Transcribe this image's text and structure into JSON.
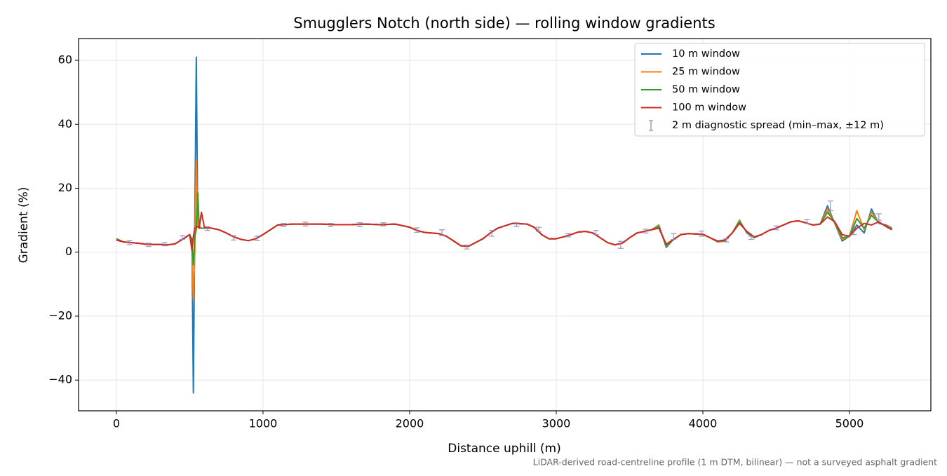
{
  "chart_data": {
    "type": "line",
    "title": "Smugglers Notch (north side) — rolling window gradients",
    "x_label": "Distance uphill (m)",
    "y_label": "Gradient (%)",
    "footnote": "LiDAR-derived road-centreline profile (1 m DTM, bilinear) — not a surveyed asphalt gradient",
    "xlim": [
      -258,
      5555
    ],
    "ylim": [
      -49.6,
      66.8
    ],
    "xticks": [
      0,
      1000,
      2000,
      3000,
      4000,
      5000
    ],
    "yticks": [
      {
        "value": -40,
        "label": "−40"
      },
      {
        "value": -20,
        "label": "−20"
      },
      0,
      20,
      40,
      60
    ],
    "grid": true,
    "legend": "upper right",
    "x": [
      0,
      50,
      100,
      150,
      200,
      250,
      300,
      350,
      400,
      450,
      500,
      515,
      525,
      535,
      545,
      555,
      565,
      580,
      600,
      650,
      700,
      750,
      800,
      850,
      900,
      950,
      1000,
      1050,
      1100,
      1200,
      1300,
      1400,
      1500,
      1600,
      1700,
      1800,
      1900,
      2000,
      2050,
      2100,
      2200,
      2250,
      2300,
      2350,
      2400,
      2450,
      2500,
      2550,
      2600,
      2700,
      2800,
      2850,
      2900,
      2950,
      3000,
      3050,
      3100,
      3150,
      3200,
      3250,
      3300,
      3350,
      3400,
      3450,
      3500,
      3550,
      3600,
      3650,
      3700,
      3750,
      3800,
      3850,
      3900,
      3950,
      4000,
      4050,
      4100,
      4150,
      4200,
      4250,
      4300,
      4350,
      4400,
      4450,
      4500,
      4550,
      4600,
      4650,
      4700,
      4750,
      4800,
      4850,
      4900,
      4950,
      5000,
      5050,
      5100,
      5150,
      5200,
      5250,
      5290
    ],
    "series": [
      {
        "name": "10 m window",
        "color": "#1f77b4",
        "values": [
          3.8,
          3.2,
          3.0,
          2.8,
          2.5,
          2.4,
          2.4,
          2.3,
          2.6,
          4.0,
          5.5,
          4,
          -44,
          10,
          61,
          8,
          7.5,
          7.5,
          7.5,
          7.5,
          7.0,
          6.0,
          4.8,
          4.0,
          3.6,
          4.2,
          5.5,
          7.0,
          8.5,
          8.8,
          8.8,
          8.8,
          8.6,
          8.6,
          8.8,
          8.6,
          8.8,
          7.8,
          6.8,
          6.2,
          5.8,
          5.0,
          3.5,
          2.0,
          1.8,
          3.0,
          4.2,
          6.0,
          7.5,
          9.0,
          8.8,
          7.8,
          5.5,
          4.2,
          4.2,
          4.8,
          5.5,
          6.3,
          6.5,
          6.0,
          4.5,
          3.0,
          2.3,
          2.8,
          4.5,
          6.0,
          6.5,
          7.0,
          8.5,
          1.5,
          4.0,
          5.5,
          5.8,
          5.7,
          5.6,
          4.5,
          3.2,
          3.5,
          6.0,
          10.0,
          6.0,
          4.5,
          5.5,
          6.8,
          7.5,
          8.5,
          9.5,
          9.8,
          9.2,
          8.5,
          8.8,
          14.5,
          9.0,
          3.5,
          5.0,
          8.5,
          6.0,
          13.5,
          9.0,
          8.5,
          7.5
        ]
      },
      {
        "name": "25 m window",
        "color": "#ff7f0e",
        "values": [
          3.8,
          3.2,
          3.0,
          2.8,
          2.5,
          2.4,
          2.4,
          2.3,
          2.6,
          4.0,
          5.5,
          2,
          -15,
          0,
          29,
          8,
          7.5,
          7.5,
          7.5,
          7.5,
          7.0,
          6.0,
          4.8,
          4.0,
          3.6,
          4.2,
          5.5,
          7.0,
          8.5,
          8.8,
          8.8,
          8.8,
          8.6,
          8.6,
          8.8,
          8.6,
          8.8,
          7.8,
          6.8,
          6.2,
          5.8,
          5.0,
          3.5,
          2.0,
          1.8,
          3.0,
          4.2,
          6.0,
          7.5,
          9.0,
          8.8,
          7.8,
          5.5,
          4.2,
          4.2,
          4.8,
          5.5,
          6.3,
          6.5,
          6.0,
          4.5,
          3.0,
          2.3,
          2.8,
          4.5,
          6.0,
          6.5,
          7.0,
          8.3,
          1.8,
          4.0,
          5.5,
          5.8,
          5.7,
          5.6,
          4.5,
          3.3,
          3.6,
          6.0,
          9.8,
          6.2,
          4.6,
          5.5,
          6.8,
          7.5,
          8.5,
          9.5,
          9.8,
          9.2,
          8.5,
          8.8,
          13.5,
          9.2,
          4.0,
          5.0,
          13.0,
          7.0,
          12.5,
          9.2,
          8.3,
          7.4
        ]
      },
      {
        "name": "50 m window",
        "color": "#2ca02c",
        "values": [
          4.2,
          3.2,
          3.0,
          2.8,
          2.5,
          2.4,
          2.4,
          2.3,
          2.6,
          4.0,
          5.5,
          3,
          -4,
          5,
          7,
          18.5,
          8,
          7.5,
          7.5,
          7.5,
          7.0,
          6.0,
          4.8,
          4.0,
          3.6,
          4.2,
          5.5,
          7.0,
          8.5,
          8.8,
          8.8,
          8.8,
          8.6,
          8.6,
          8.8,
          8.6,
          8.8,
          7.8,
          6.8,
          6.2,
          5.8,
          5.0,
          3.5,
          2.0,
          1.8,
          3.0,
          4.2,
          6.0,
          7.5,
          9.0,
          8.8,
          7.8,
          5.5,
          4.2,
          4.2,
          4.8,
          5.5,
          6.3,
          6.5,
          6.0,
          4.5,
          3.0,
          2.3,
          2.8,
          4.5,
          6.0,
          6.5,
          7.0,
          8.0,
          2.0,
          4.0,
          5.5,
          5.8,
          5.7,
          5.6,
          4.5,
          3.4,
          3.7,
          6.0,
          9.5,
          6.3,
          4.7,
          5.5,
          6.8,
          7.5,
          8.5,
          9.5,
          9.8,
          9.2,
          8.5,
          8.8,
          12.5,
          9.4,
          4.5,
          5.0,
          10.5,
          7.5,
          11.5,
          9.3,
          8.2,
          7.2
        ]
      },
      {
        "name": "100 m window",
        "color": "#d62728",
        "values": [
          3.8,
          3.2,
          3.0,
          2.8,
          2.5,
          2.4,
          2.4,
          2.3,
          2.6,
          4.0,
          5.5,
          0.6,
          5,
          7.5,
          7.8,
          8,
          7.5,
          12.5,
          7.8,
          7.5,
          7.0,
          6.0,
          4.8,
          4.0,
          3.6,
          4.2,
          5.5,
          7.0,
          8.5,
          8.8,
          8.8,
          8.8,
          8.6,
          8.6,
          8.8,
          8.6,
          8.8,
          7.8,
          6.8,
          6.2,
          5.8,
          5.0,
          3.5,
          2.0,
          1.8,
          3.0,
          4.2,
          6.0,
          7.5,
          9.0,
          8.8,
          7.8,
          5.5,
          4.2,
          4.2,
          4.8,
          5.5,
          6.3,
          6.5,
          6.0,
          4.5,
          3.0,
          2.3,
          2.8,
          4.5,
          6.0,
          6.5,
          7.0,
          7.5,
          2.5,
          4.0,
          5.5,
          5.8,
          5.7,
          5.6,
          4.5,
          3.5,
          3.8,
          6.0,
          9.0,
          6.5,
          4.8,
          5.5,
          6.8,
          7.5,
          8.5,
          9.5,
          9.8,
          9.2,
          8.5,
          8.8,
          11.0,
          9.5,
          5.5,
          5.0,
          7.5,
          9.0,
          8.5,
          9.5,
          8.0,
          7.0
        ]
      }
    ],
    "spread": {
      "name": "2 m diagnostic spread (min–max, ±12 m)",
      "color": "#8c8cb4",
      "x": [
        90,
        220,
        330,
        450,
        620,
        800,
        960,
        1140,
        1290,
        1460,
        1660,
        1820,
        2050,
        2220,
        2390,
        2560,
        2730,
        2880,
        3080,
        3270,
        3440,
        3610,
        3800,
        3990,
        4160,
        4330,
        4500,
        4710,
        4870,
        5030,
        5200
      ],
      "low": [
        2.4,
        1.8,
        2.0,
        4.0,
        6.8,
        3.8,
        3.6,
        8.0,
        8.2,
        8.0,
        8.0,
        8.2,
        6.2,
        5.2,
        1.0,
        5.0,
        8.0,
        6.5,
        4.8,
        5.5,
        1.2,
        6.0,
        4.0,
        5.0,
        3.2,
        4.0,
        7.0,
        9.0,
        13.0,
        5.5,
        10.0
      ],
      "high": [
        3.6,
        2.8,
        3.0,
        5.2,
        8.0,
        5.2,
        5.0,
        9.0,
        9.4,
        9.0,
        9.2,
        9.2,
        7.6,
        7.0,
        2.2,
        6.8,
        9.2,
        7.8,
        5.8,
        6.8,
        3.4,
        7.2,
        5.8,
        6.6,
        4.2,
        5.0,
        8.2,
        10.2,
        16.0,
        8.0,
        12.0
      ]
    }
  }
}
